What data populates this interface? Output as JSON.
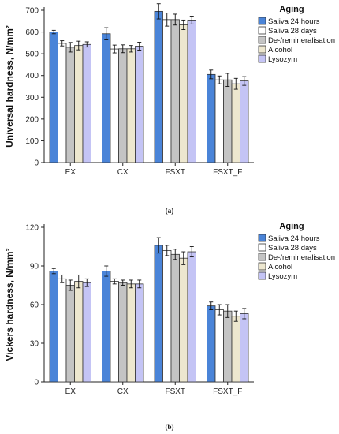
{
  "series_colors": [
    "#4a84d8",
    "#ffffff",
    "#c4c4c4",
    "#ede7cf",
    "#c4c4f5"
  ],
  "chart_data": [
    {
      "type": "bar",
      "caption": "(a)",
      "ylabel": "Universal hardness, N/mm²",
      "ylim": [
        0,
        700
      ],
      "yticks": [
        0,
        100,
        200,
        300,
        400,
        500,
        600,
        700
      ],
      "categories": [
        "EX",
        "CX",
        "FSXT",
        "FSXT_F"
      ],
      "legend_title": "Aging",
      "legend_position": "top-right",
      "grid": false,
      "series": [
        {
          "name": "Saliva 24 hours",
          "values": [
            600,
            592,
            695,
            405
          ],
          "errors": [
            8,
            28,
            35,
            20
          ]
        },
        {
          "name": "Saliva 28 days",
          "values": [
            548,
            522,
            657,
            380
          ],
          "errors": [
            12,
            18,
            30,
            18
          ]
        },
        {
          "name": "De-/remineralisation",
          "values": [
            530,
            523,
            657,
            380
          ],
          "errors": [
            22,
            18,
            25,
            30
          ]
        },
        {
          "name": "Alcohol",
          "values": [
            538,
            523,
            633,
            362
          ],
          "errors": [
            20,
            15,
            22,
            25
          ]
        },
        {
          "name": "Lysozym",
          "values": [
            543,
            535,
            655,
            375
          ],
          "errors": [
            12,
            18,
            18,
            20
          ]
        }
      ]
    },
    {
      "type": "bar",
      "caption": "(b)",
      "ylabel": "Vickers hardness, N/mm²",
      "ylim": [
        0,
        120
      ],
      "yticks": [
        0,
        30,
        60,
        90,
        120
      ],
      "categories": [
        "EX",
        "CX",
        "FSXT",
        "FSXT_F"
      ],
      "legend_title": "Aging",
      "legend_position": "top-right",
      "grid": false,
      "series": [
        {
          "name": "Saliva 24 hours",
          "values": [
            86,
            86,
            106,
            59
          ],
          "errors": [
            2,
            4,
            6,
            3
          ]
        },
        {
          "name": "Saliva 28 days",
          "values": [
            80,
            78,
            102,
            56
          ],
          "errors": [
            3,
            2,
            4,
            4
          ]
        },
        {
          "name": "De-/remineralisation",
          "values": [
            75,
            77,
            99,
            55
          ],
          "errors": [
            4,
            2,
            4,
            5
          ]
        },
        {
          "name": "Alcohol",
          "values": [
            78,
            76,
            96,
            51
          ],
          "errors": [
            5,
            3,
            5,
            4
          ]
        },
        {
          "name": "Lysozym",
          "values": [
            77,
            76,
            101,
            53
          ],
          "errors": [
            3,
            3,
            4,
            4
          ]
        }
      ]
    }
  ]
}
